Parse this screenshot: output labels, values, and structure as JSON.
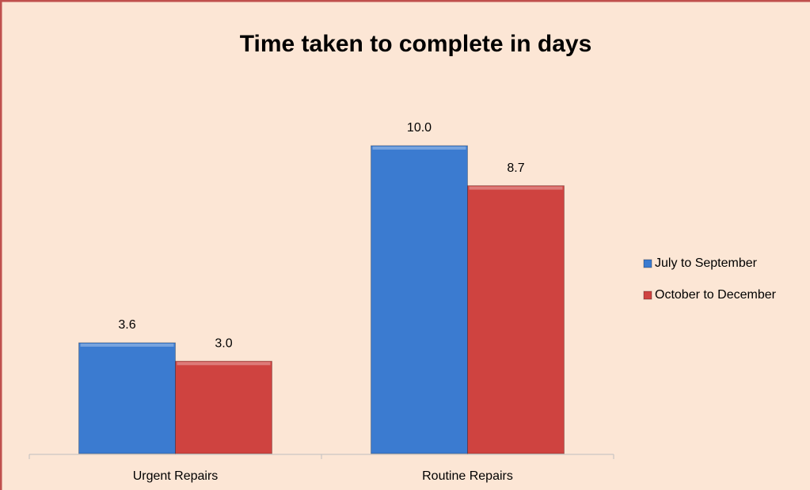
{
  "chart_data": {
    "type": "bar",
    "title": "Time taken to complete in days",
    "categories": [
      "Urgent Repairs",
      "Routine Repairs"
    ],
    "series": [
      {
        "name": "July to September",
        "color": "#3b7bd0",
        "values": [
          3.6,
          10.0
        ],
        "value_labels": [
          "3.6",
          "10.0"
        ]
      },
      {
        "name": "October to December",
        "color": "#cf4340",
        "values": [
          3.0,
          8.7
        ],
        "value_labels": [
          "3.0",
          "8.7"
        ]
      }
    ]
  }
}
